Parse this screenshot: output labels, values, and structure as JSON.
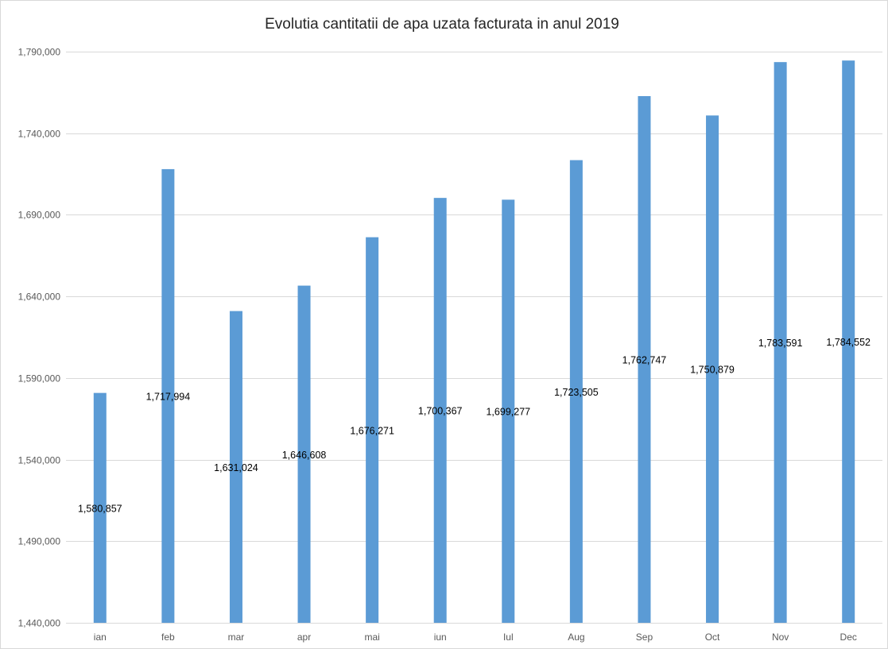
{
  "chart_data": {
    "type": "bar",
    "title": "Evolutia cantitatii de apa uzata facturata in anul 2019",
    "xlabel": "",
    "ylabel": "",
    "categories": [
      "ian",
      "feb",
      "mar",
      "apr",
      "mai",
      "iun",
      "Iul",
      "Aug",
      "Sep",
      "Oct",
      "Nov",
      "Dec"
    ],
    "values": [
      1580857,
      1717994,
      1631024,
      1646608,
      1676271,
      1700367,
      1699277,
      1723505,
      1762747,
      1750879,
      1783591,
      1784552
    ],
    "data_labels": [
      "1,580,857",
      "1,717,994",
      "1,631,024",
      "1,646,608",
      "1,676,271",
      "1,700,367",
      "1,699,277",
      "1,723,505",
      "1,762,747",
      "1,750,879",
      "1,783,591",
      "1,784,552"
    ],
    "ylim": [
      1440000,
      1790000
    ],
    "yticks": [
      1440000,
      1490000,
      1540000,
      1590000,
      1640000,
      1690000,
      1740000,
      1790000
    ],
    "ytick_labels": [
      "1,440,000",
      "1,490,000",
      "1,540,000",
      "1,590,000",
      "1,640,000",
      "1,690,000",
      "1,740,000",
      "1,790,000"
    ],
    "grid": true,
    "legend": false,
    "bar_color": "#5b9bd5"
  }
}
